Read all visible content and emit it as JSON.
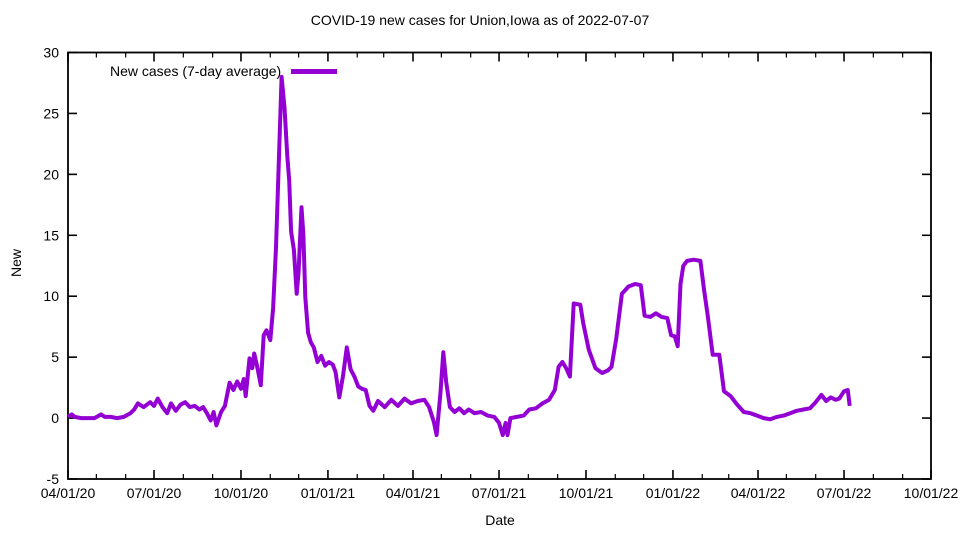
{
  "colors": {
    "line": "#9400d3",
    "axis": "#000000",
    "background": "#ffffff"
  },
  "chart_data": {
    "type": "line",
    "title": "COVID-19 new cases for Union,Iowa as of 2022-07-07",
    "xlabel": "Date",
    "ylabel": "New",
    "grid": false,
    "legend_position": "top-left",
    "ylim": [
      -5,
      30
    ],
    "y_ticks": [
      -5,
      0,
      5,
      10,
      15,
      20,
      25,
      30
    ],
    "x_range": [
      "2020-04-01",
      "2022-10-01"
    ],
    "x_tick_labels": [
      "04/01/20",
      "07/01/20",
      "10/01/20",
      "01/01/21",
      "04/01/21",
      "07/01/21",
      "10/01/21",
      "01/01/22",
      "04/01/22",
      "07/01/22",
      "10/01/22"
    ],
    "series": [
      {
        "name": "New cases (7-day average)",
        "color": "#9400d3",
        "points": [
          [
            "2020-04-01",
            0.1
          ],
          [
            "2020-04-05",
            0.3
          ],
          [
            "2020-04-08",
            0.1
          ],
          [
            "2020-04-15",
            0
          ],
          [
            "2020-04-22",
            0
          ],
          [
            "2020-04-29",
            0
          ],
          [
            "2020-05-06",
            0.3
          ],
          [
            "2020-05-10",
            0.1
          ],
          [
            "2020-05-16",
            0.1
          ],
          [
            "2020-05-23",
            0
          ],
          [
            "2020-05-30",
            0.1
          ],
          [
            "2020-06-06",
            0.4
          ],
          [
            "2020-06-10",
            0.7
          ],
          [
            "2020-06-14",
            1.2
          ],
          [
            "2020-06-20",
            0.9
          ],
          [
            "2020-06-27",
            1.3
          ],
          [
            "2020-07-01",
            1.0
          ],
          [
            "2020-07-05",
            1.6
          ],
          [
            "2020-07-10",
            0.9
          ],
          [
            "2020-07-15",
            0.4
          ],
          [
            "2020-07-19",
            1.2
          ],
          [
            "2020-07-24",
            0.6
          ],
          [
            "2020-07-29",
            1.1
          ],
          [
            "2020-08-03",
            1.3
          ],
          [
            "2020-08-08",
            0.9
          ],
          [
            "2020-08-13",
            1.0
          ],
          [
            "2020-08-18",
            0.7
          ],
          [
            "2020-08-22",
            0.9
          ],
          [
            "2020-08-26",
            0.4
          ],
          [
            "2020-08-30",
            -0.2
          ],
          [
            "2020-09-02",
            0.5
          ],
          [
            "2020-09-05",
            -0.6
          ],
          [
            "2020-09-10",
            0.5
          ],
          [
            "2020-09-14",
            1.0
          ],
          [
            "2020-09-19",
            2.9
          ],
          [
            "2020-09-23",
            2.3
          ],
          [
            "2020-09-27",
            3.0
          ],
          [
            "2020-10-01",
            2.4
          ],
          [
            "2020-10-04",
            3.2
          ],
          [
            "2020-10-06",
            1.8
          ],
          [
            "2020-10-10",
            4.9
          ],
          [
            "2020-10-13",
            4.1
          ],
          [
            "2020-10-15",
            5.3
          ],
          [
            "2020-10-18",
            4.3
          ],
          [
            "2020-10-22",
            2.7
          ],
          [
            "2020-10-25",
            6.8
          ],
          [
            "2020-10-28",
            7.2
          ],
          [
            "2020-11-01",
            6.4
          ],
          [
            "2020-11-04",
            9.0
          ],
          [
            "2020-11-07",
            14.0
          ],
          [
            "2020-11-10",
            21.0
          ],
          [
            "2020-11-13",
            28.0
          ],
          [
            "2020-11-16",
            25.5
          ],
          [
            "2020-11-19",
            21.5
          ],
          [
            "2020-11-21",
            19.5
          ],
          [
            "2020-11-23",
            15.3
          ],
          [
            "2020-11-26",
            13.8
          ],
          [
            "2020-11-29",
            10.2
          ],
          [
            "2020-12-01",
            12.0
          ],
          [
            "2020-12-04",
            17.3
          ],
          [
            "2020-12-06",
            15.0
          ],
          [
            "2020-12-08",
            9.9
          ],
          [
            "2020-12-11",
            7.0
          ],
          [
            "2020-12-14",
            6.2
          ],
          [
            "2020-12-17",
            5.8
          ],
          [
            "2020-12-21",
            4.6
          ],
          [
            "2020-12-25",
            5.1
          ],
          [
            "2020-12-29",
            4.3
          ],
          [
            "2021-01-02",
            4.6
          ],
          [
            "2021-01-06",
            4.4
          ],
          [
            "2021-01-09",
            3.8
          ],
          [
            "2021-01-13",
            1.7
          ],
          [
            "2021-01-17",
            3.5
          ],
          [
            "2021-01-21",
            5.8
          ],
          [
            "2021-01-25",
            4.0
          ],
          [
            "2021-01-29",
            3.4
          ],
          [
            "2021-02-02",
            2.6
          ],
          [
            "2021-02-06",
            2.4
          ],
          [
            "2021-02-10",
            2.3
          ],
          [
            "2021-02-14",
            1.0
          ],
          [
            "2021-02-18",
            0.6
          ],
          [
            "2021-02-23",
            1.4
          ],
          [
            "2021-03-02",
            0.9
          ],
          [
            "2021-03-09",
            1.5
          ],
          [
            "2021-03-16",
            1.0
          ],
          [
            "2021-03-23",
            1.6
          ],
          [
            "2021-03-30",
            1.2
          ],
          [
            "2021-04-06",
            1.4
          ],
          [
            "2021-04-13",
            1.5
          ],
          [
            "2021-04-18",
            0.9
          ],
          [
            "2021-04-23",
            -0.3
          ],
          [
            "2021-04-26",
            -1.4
          ],
          [
            "2021-04-30",
            2.0
          ],
          [
            "2021-05-03",
            5.4
          ],
          [
            "2021-05-06",
            3.0
          ],
          [
            "2021-05-10",
            0.9
          ],
          [
            "2021-05-15",
            0.5
          ],
          [
            "2021-05-20",
            0.8
          ],
          [
            "2021-05-25",
            0.4
          ],
          [
            "2021-05-30",
            0.7
          ],
          [
            "2021-06-05",
            0.4
          ],
          [
            "2021-06-12",
            0.5
          ],
          [
            "2021-06-19",
            0.2
          ],
          [
            "2021-06-26",
            0.1
          ],
          [
            "2021-07-01",
            -0.4
          ],
          [
            "2021-07-05",
            -1.4
          ],
          [
            "2021-07-08",
            -0.4
          ],
          [
            "2021-07-10",
            -1.4
          ],
          [
            "2021-07-13",
            0.0
          ],
          [
            "2021-07-20",
            0.1
          ],
          [
            "2021-07-27",
            0.2
          ],
          [
            "2021-08-02",
            0.7
          ],
          [
            "2021-08-09",
            0.8
          ],
          [
            "2021-08-16",
            1.2
          ],
          [
            "2021-08-23",
            1.5
          ],
          [
            "2021-08-29",
            2.3
          ],
          [
            "2021-09-02",
            4.2
          ],
          [
            "2021-09-06",
            4.6
          ],
          [
            "2021-09-10",
            4.1
          ],
          [
            "2021-09-14",
            3.4
          ],
          [
            "2021-09-18",
            9.4
          ],
          [
            "2021-09-25",
            9.3
          ],
          [
            "2021-09-28",
            7.8
          ],
          [
            "2021-10-04",
            5.6
          ],
          [
            "2021-10-11",
            4.1
          ],
          [
            "2021-10-18",
            3.7
          ],
          [
            "2021-10-24",
            3.9
          ],
          [
            "2021-10-28",
            4.2
          ],
          [
            "2021-11-02",
            6.5
          ],
          [
            "2021-11-08",
            10.2
          ],
          [
            "2021-11-15",
            10.8
          ],
          [
            "2021-11-22",
            11.0
          ],
          [
            "2021-11-28",
            10.9
          ],
          [
            "2021-12-02",
            8.4
          ],
          [
            "2021-12-08",
            8.3
          ],
          [
            "2021-12-14",
            8.6
          ],
          [
            "2021-12-20",
            8.3
          ],
          [
            "2021-12-26",
            8.2
          ],
          [
            "2021-12-30",
            6.8
          ],
          [
            "2022-01-03",
            6.7
          ],
          [
            "2022-01-06",
            5.9
          ],
          [
            "2022-01-09",
            11.0
          ],
          [
            "2022-01-12",
            12.5
          ],
          [
            "2022-01-16",
            12.9
          ],
          [
            "2022-01-23",
            13.0
          ],
          [
            "2022-01-30",
            12.9
          ],
          [
            "2022-02-03",
            10.5
          ],
          [
            "2022-02-07",
            8.3
          ],
          [
            "2022-02-12",
            5.2
          ],
          [
            "2022-02-19",
            5.2
          ],
          [
            "2022-02-24",
            2.2
          ],
          [
            "2022-03-03",
            1.8
          ],
          [
            "2022-03-10",
            1.1
          ],
          [
            "2022-03-17",
            0.5
          ],
          [
            "2022-03-24",
            0.4
          ],
          [
            "2022-03-31",
            0.2
          ],
          [
            "2022-04-07",
            0.0
          ],
          [
            "2022-04-14",
            -0.1
          ],
          [
            "2022-04-21",
            0.1
          ],
          [
            "2022-04-28",
            0.2
          ],
          [
            "2022-05-05",
            0.4
          ],
          [
            "2022-05-12",
            0.6
          ],
          [
            "2022-05-19",
            0.7
          ],
          [
            "2022-05-26",
            0.8
          ],
          [
            "2022-06-01",
            1.3
          ],
          [
            "2022-06-07",
            1.9
          ],
          [
            "2022-06-12",
            1.4
          ],
          [
            "2022-06-17",
            1.7
          ],
          [
            "2022-06-22",
            1.5
          ],
          [
            "2022-06-26",
            1.6
          ],
          [
            "2022-07-01",
            2.2
          ],
          [
            "2022-07-05",
            2.3
          ],
          [
            "2022-07-07",
            1.0
          ]
        ]
      }
    ]
  }
}
